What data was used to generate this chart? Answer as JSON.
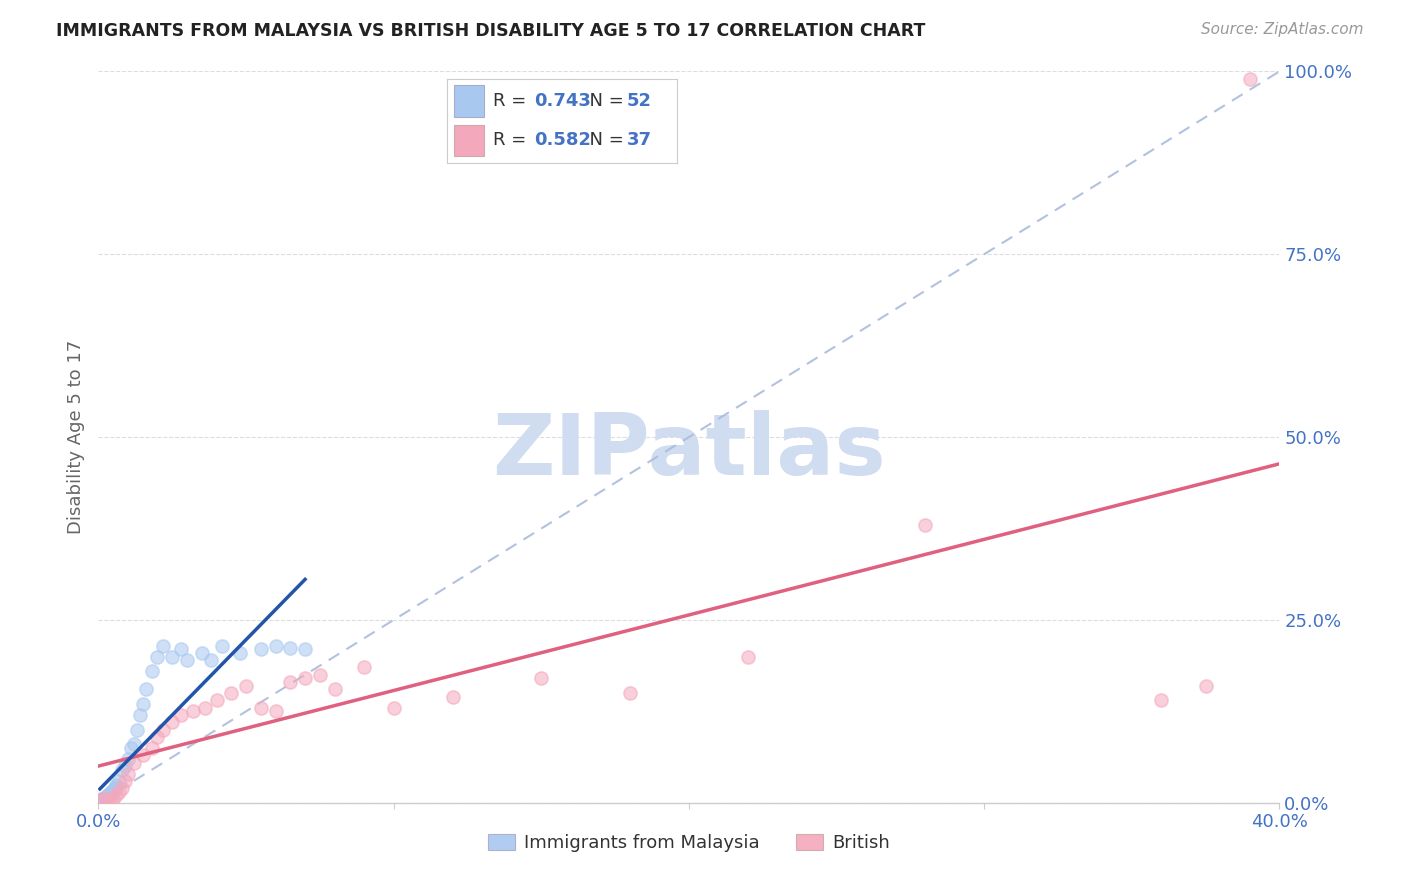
{
  "title": "IMMIGRANTS FROM MALAYSIA VS BRITISH DISABILITY AGE 5 TO 17 CORRELATION CHART",
  "source": "Source: ZipAtlas.com",
  "ylabel": "Disability Age 5 to 17",
  "xlim": [
    0.0,
    0.4
  ],
  "ylim": [
    0.0,
    1.0
  ],
  "blue_label": "Immigrants from Malaysia",
  "pink_label": "British",
  "blue_R": "0.743",
  "blue_N": "52",
  "pink_R": "0.582",
  "pink_N": "37",
  "blue_scatter_color": "#A8C8F0",
  "pink_scatter_color": "#F4A8BC",
  "blue_line_color": "#2255AA",
  "pink_line_color": "#E06080",
  "diag_color": "#AABBDD",
  "grid_color": "#DDDDDD",
  "axis_tick_color": "#4472C4",
  "title_color": "#222222",
  "source_color": "#999999",
  "ylabel_color": "#666666",
  "watermark_color": "#D0DCF0",
  "background_color": "#FFFFFF",
  "legend_text_color": "#333333",
  "legend_value_color": "#4472C4",
  "blue_scatter_x": [
    0.0005,
    0.0008,
    0.001,
    0.0012,
    0.0014,
    0.0015,
    0.0016,
    0.0018,
    0.002,
    0.002,
    0.0022,
    0.0023,
    0.0025,
    0.0025,
    0.0028,
    0.003,
    0.003,
    0.0032,
    0.0035,
    0.004,
    0.004,
    0.0042,
    0.0045,
    0.005,
    0.005,
    0.0055,
    0.006,
    0.006,
    0.007,
    0.008,
    0.009,
    0.01,
    0.011,
    0.012,
    0.013,
    0.014,
    0.015,
    0.016,
    0.018,
    0.02,
    0.022,
    0.025,
    0.028,
    0.03,
    0.035,
    0.038,
    0.042,
    0.048,
    0.055,
    0.06,
    0.065,
    0.07
  ],
  "blue_scatter_y": [
    0.002,
    0.003,
    0.003,
    0.004,
    0.004,
    0.005,
    0.005,
    0.005,
    0.005,
    0.006,
    0.006,
    0.007,
    0.007,
    0.008,
    0.008,
    0.009,
    0.009,
    0.01,
    0.01,
    0.012,
    0.013,
    0.014,
    0.015,
    0.016,
    0.018,
    0.02,
    0.022,
    0.025,
    0.03,
    0.045,
    0.05,
    0.06,
    0.075,
    0.08,
    0.1,
    0.12,
    0.135,
    0.155,
    0.18,
    0.2,
    0.215,
    0.2,
    0.21,
    0.195,
    0.205,
    0.195,
    0.215,
    0.205,
    0.21,
    0.215,
    0.212,
    0.21
  ],
  "pink_scatter_x": [
    0.001,
    0.002,
    0.004,
    0.005,
    0.006,
    0.007,
    0.008,
    0.009,
    0.01,
    0.012,
    0.015,
    0.018,
    0.02,
    0.022,
    0.025,
    0.028,
    0.032,
    0.036,
    0.04,
    0.045,
    0.05,
    0.055,
    0.06,
    0.065,
    0.07,
    0.075,
    0.08,
    0.09,
    0.1,
    0.12,
    0.15,
    0.18,
    0.22,
    0.28,
    0.36,
    0.375,
    0.39
  ],
  "pink_scatter_y": [
    0.005,
    0.005,
    0.005,
    0.005,
    0.01,
    0.015,
    0.02,
    0.03,
    0.04,
    0.055,
    0.065,
    0.075,
    0.09,
    0.1,
    0.11,
    0.12,
    0.125,
    0.13,
    0.14,
    0.15,
    0.16,
    0.13,
    0.125,
    0.165,
    0.17,
    0.175,
    0.155,
    0.185,
    0.13,
    0.145,
    0.17,
    0.15,
    0.2,
    0.38,
    0.14,
    0.16,
    0.99
  ],
  "watermark": "ZIPatlas"
}
